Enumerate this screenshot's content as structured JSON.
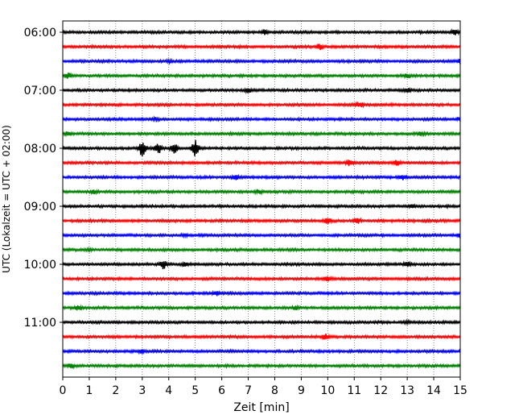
{
  "chart_data": {
    "type": "line",
    "title": "",
    "xlabel": "Zeit  [min]",
    "ylabel": "UTC (Lokalzeit = UTC + 02:00)",
    "xlim": [
      0,
      15
    ],
    "x_ticks": [
      0,
      1,
      2,
      3,
      4,
      5,
      6,
      7,
      8,
      9,
      10,
      11,
      12,
      13,
      14,
      15
    ],
    "y_tick_labels": [
      "06:00",
      "07:00",
      "08:00",
      "09:00",
      "10:00",
      "11:00"
    ],
    "grid": "vertical dotted lines at each minute",
    "trace_colors": [
      "#000000",
      "#ff0000",
      "#0000ff",
      "#008000"
    ],
    "series": [
      {
        "start": "06:00",
        "color": "black",
        "events": [
          [
            7.6,
            0.25
          ],
          [
            14.8,
            0.3
          ]
        ]
      },
      {
        "start": "06:15",
        "color": "red",
        "events": [
          [
            9.7,
            0.35
          ]
        ]
      },
      {
        "start": "06:30",
        "color": "blue",
        "events": [
          [
            4.0,
            0.15
          ],
          [
            15.0,
            0.25
          ]
        ]
      },
      {
        "start": "06:45",
        "color": "green",
        "events": [
          [
            0.2,
            0.3
          ],
          [
            13.0,
            0.3
          ]
        ]
      },
      {
        "start": "07:00",
        "color": "black",
        "events": [
          [
            7.0,
            0.3
          ],
          [
            13.0,
            0.2
          ]
        ]
      },
      {
        "start": "07:15",
        "color": "red",
        "events": [
          [
            11.2,
            0.3
          ]
        ]
      },
      {
        "start": "07:30",
        "color": "blue",
        "events": [
          [
            3.5,
            0.15
          ],
          [
            15.0,
            0.2
          ]
        ]
      },
      {
        "start": "07:45",
        "color": "green",
        "events": [
          [
            0.2,
            0.2
          ],
          [
            13.5,
            0.2
          ]
        ]
      },
      {
        "start": "08:00",
        "color": "black",
        "events": [
          [
            3.0,
            1.0
          ],
          [
            3.6,
            0.6
          ],
          [
            4.2,
            0.7
          ],
          [
            5.0,
            1.0
          ]
        ]
      },
      {
        "start": "08:15",
        "color": "red",
        "events": [
          [
            10.8,
            0.35
          ],
          [
            12.6,
            0.3
          ]
        ]
      },
      {
        "start": "08:30",
        "color": "blue",
        "events": [
          [
            6.5,
            0.3
          ],
          [
            12.8,
            0.3
          ]
        ]
      },
      {
        "start": "08:45",
        "color": "green",
        "events": [
          [
            1.2,
            0.2
          ],
          [
            7.4,
            0.25
          ]
        ]
      },
      {
        "start": "09:00",
        "color": "black",
        "events": [
          [
            13.2,
            0.15
          ]
        ]
      },
      {
        "start": "09:15",
        "color": "red",
        "events": [
          [
            10.0,
            0.35
          ],
          [
            11.1,
            0.3
          ]
        ]
      },
      {
        "start": "09:30",
        "color": "blue",
        "events": [
          [
            4.6,
            0.15
          ],
          [
            15.0,
            0.3
          ]
        ]
      },
      {
        "start": "09:45",
        "color": "green",
        "events": [
          [
            1.0,
            0.1
          ]
        ]
      },
      {
        "start": "10:00",
        "color": "black",
        "events": [
          [
            3.8,
            0.55
          ],
          [
            4.6,
            0.2
          ],
          [
            13.0,
            0.25
          ]
        ]
      },
      {
        "start": "10:15",
        "color": "red",
        "events": [
          [
            10.0,
            0.35
          ]
        ]
      },
      {
        "start": "10:30",
        "color": "blue",
        "events": [
          [
            5.8,
            0.25
          ]
        ]
      },
      {
        "start": "10:45",
        "color": "green",
        "events": [
          [
            0.6,
            0.25
          ],
          [
            8.8,
            0.2
          ]
        ]
      },
      {
        "start": "11:00",
        "color": "black",
        "events": [
          [
            13.0,
            0.15
          ]
        ]
      },
      {
        "start": "11:15",
        "color": "red",
        "events": [
          [
            9.9,
            0.3
          ]
        ]
      },
      {
        "start": "11:30",
        "color": "blue",
        "events": [
          [
            3.0,
            0.2
          ]
        ]
      },
      {
        "start": "11:45",
        "color": "green",
        "events": [
          [
            0.3,
            0.3
          ]
        ]
      }
    ]
  }
}
